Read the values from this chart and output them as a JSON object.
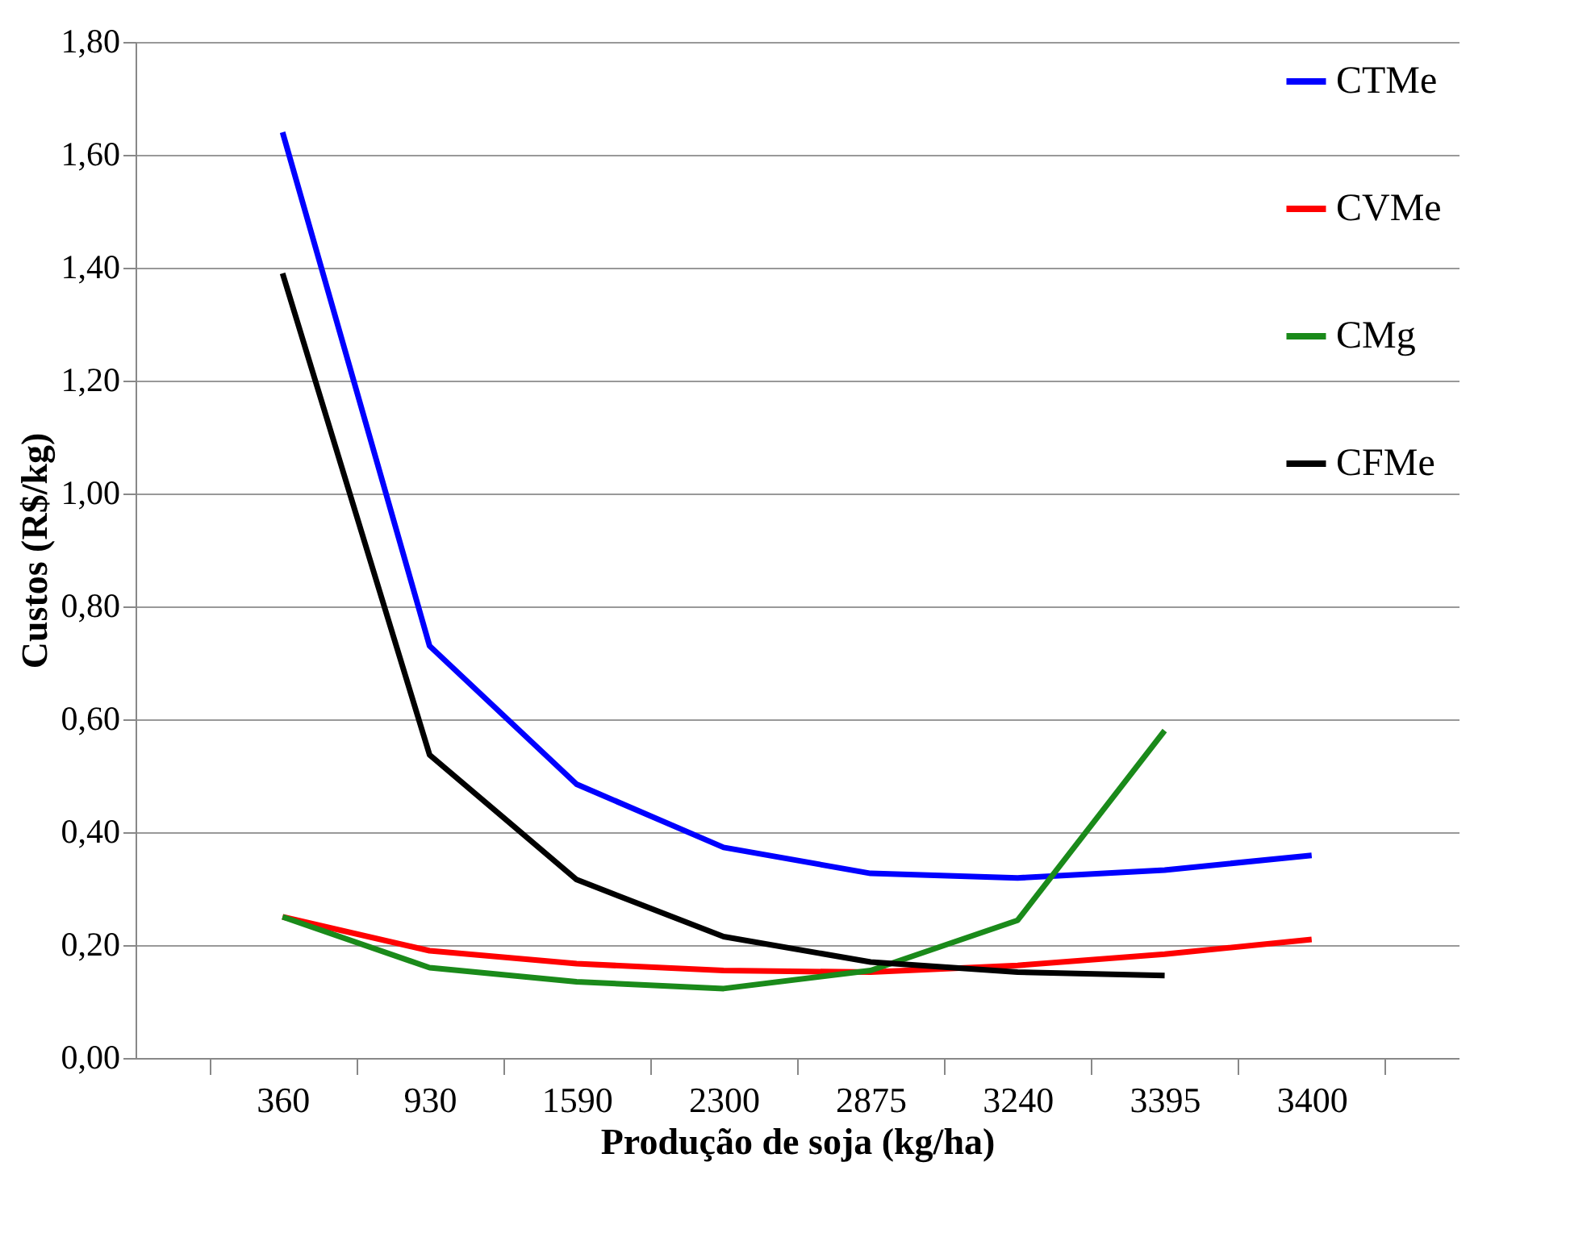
{
  "chart_data": {
    "type": "line",
    "xlabel": "Produção de soja (kg/ha)",
    "ylabel": "Custos (R$/kg)",
    "categories": [
      "360",
      "930",
      "1590",
      "2300",
      "2875",
      "3240",
      "3395",
      "3400"
    ],
    "series": [
      {
        "name": "CTMe",
        "color": "#0000ff",
        "values": [
          1.64,
          0.73,
          0.485,
          0.373,
          0.327,
          0.319,
          0.333,
          0.359
        ]
      },
      {
        "name": "CVMe",
        "color": "#ff0000",
        "values": [
          0.25,
          0.19,
          0.167,
          0.155,
          0.152,
          0.164,
          0.184,
          0.21
        ]
      },
      {
        "name": "CMg",
        "color": "#1a8a1a",
        "values": [
          0.25,
          0.16,
          0.135,
          0.123,
          0.155,
          0.244,
          0.58,
          null
        ]
      },
      {
        "name": "CFMe",
        "color": "#000000",
        "values": [
          1.39,
          0.537,
          0.316,
          0.215,
          0.17,
          0.152,
          0.146,
          null
        ]
      }
    ],
    "ylim": [
      0,
      1.8
    ],
    "yticks": [
      {
        "value": 0,
        "label": "0,00"
      },
      {
        "value": 0.2,
        "label": "0,20"
      },
      {
        "value": 0.4,
        "label": "0,40"
      },
      {
        "value": 0.6,
        "label": "0,60"
      },
      {
        "value": 0.8,
        "label": "0,80"
      },
      {
        "value": 1,
        "label": "1,00"
      },
      {
        "value": 1.2,
        "label": "1,20"
      },
      {
        "value": 1.4,
        "label": "1,40"
      },
      {
        "value": 1.6,
        "label": "1,60"
      },
      {
        "value": 1.8,
        "label": "1,80"
      }
    ],
    "grid": "y",
    "legend": "top right",
    "marker": "none",
    "line_style": "solid"
  }
}
